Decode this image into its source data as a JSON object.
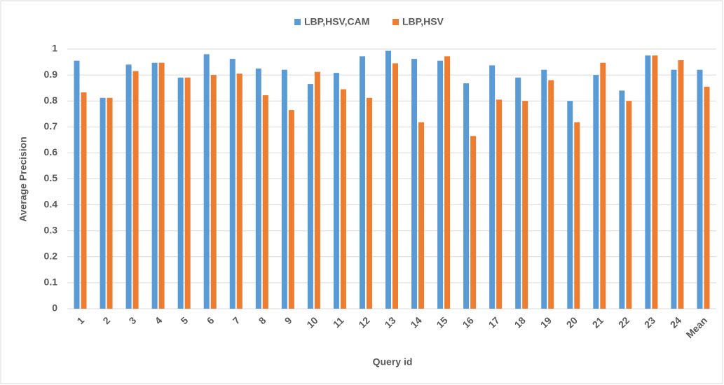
{
  "chart_data": {
    "type": "bar",
    "x_label": "Query id",
    "y_label": "Average Precision",
    "categories": [
      "1",
      "2",
      "3",
      "4",
      "5",
      "6",
      "7",
      "8",
      "9",
      "10",
      "11",
      "12",
      "13",
      "14",
      "15",
      "16",
      "17",
      "18",
      "19",
      "20",
      "21",
      "22",
      "23",
      "24",
      "Mean"
    ],
    "series": [
      {
        "name": "LBP,HSV,CAM",
        "color": "#5b9bd5",
        "values": [
          0.955,
          0.812,
          0.94,
          0.947,
          0.89,
          0.98,
          0.962,
          0.925,
          0.92,
          0.865,
          0.908,
          0.972,
          0.993,
          0.962,
          0.955,
          0.868,
          0.937,
          0.89,
          0.92,
          0.8,
          0.9,
          0.84,
          0.975,
          0.92,
          0.92
        ]
      },
      {
        "name": "LBP,HSV",
        "color": "#ed7d31",
        "values": [
          0.833,
          0.812,
          0.915,
          0.947,
          0.89,
          0.9,
          0.905,
          0.822,
          0.765,
          0.912,
          0.845,
          0.812,
          0.945,
          0.718,
          0.972,
          0.665,
          0.805,
          0.8,
          0.88,
          0.718,
          0.947,
          0.8,
          0.975,
          0.957,
          0.855
        ]
      }
    ],
    "ylim": [
      0,
      1
    ],
    "yticks": [
      0,
      0.1,
      0.2,
      0.3,
      0.4,
      0.5,
      0.6,
      0.7,
      0.8,
      0.9,
      1
    ],
    "grid": true,
    "legend": "top"
  }
}
